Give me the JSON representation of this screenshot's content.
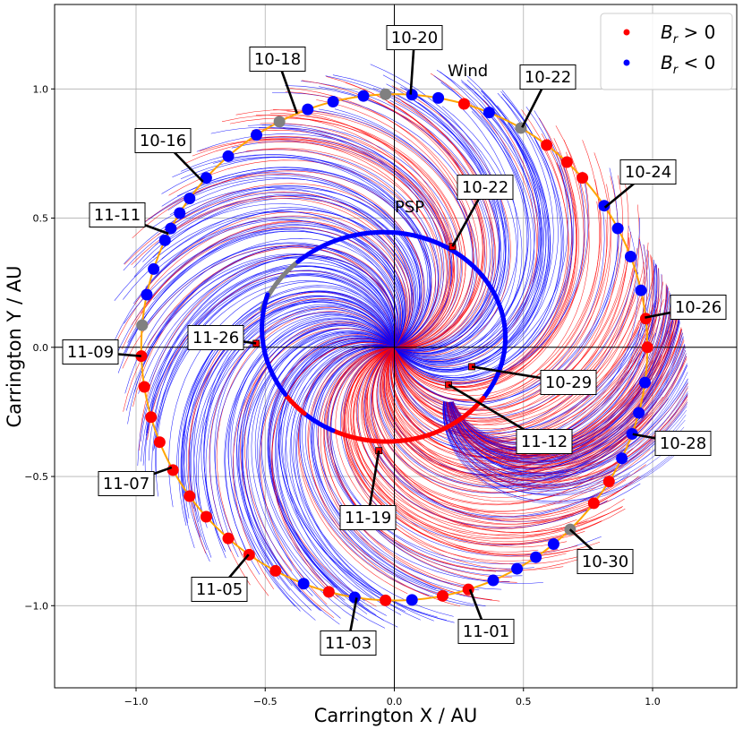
{
  "chart_data": {
    "type": "scatter",
    "xlabel": "Carrington X / AU",
    "ylabel": "Carrington Y / AU",
    "xlim": [
      -1.32,
      1.32
    ],
    "ylim": [
      -1.32,
      1.32
    ],
    "xticks": [
      -1.0,
      -0.5,
      0.0,
      0.5,
      1.0
    ],
    "yticks": [
      -1.0,
      -0.5,
      0.0,
      0.5,
      1.0
    ],
    "xtick_labels": [
      "−1.0",
      "−0.5",
      "0.0",
      "0.5",
      "1.0"
    ],
    "ytick_labels": [
      "−1.0",
      "−0.5",
      "0.0",
      "0.5",
      "1.0"
    ],
    "grid": true,
    "legend": {
      "position": "top-right",
      "entries": [
        {
          "label": "B",
          "sub": "r",
          "rel": " > 0",
          "color": "#ff0000"
        },
        {
          "label": "B",
          "sub": "r",
          "rel": " < 0",
          "color": "#0000ff"
        }
      ]
    },
    "colors": {
      "positive": "#ff0000",
      "negative": "#0000ff",
      "gap": "#808080",
      "orbit": "#ffa500",
      "grid": "#b0b0b0"
    },
    "series": [
      {
        "name": "Wind",
        "label": "Wind",
        "orbit_radius": 0.98,
        "points": [
          {
            "angle": 86,
            "p": "n"
          },
          {
            "angle": 80,
            "p": "n"
          },
          {
            "angle": 74,
            "p": "p"
          },
          {
            "angle": 68,
            "p": "n"
          },
          {
            "angle": 60,
            "p": "g"
          },
          {
            "angle": 53,
            "p": "p"
          },
          {
            "angle": 47,
            "p": "p"
          },
          {
            "angle": 42,
            "p": "p"
          },
          {
            "angle": 34,
            "p": "n"
          },
          {
            "angle": 28,
            "p": "n"
          },
          {
            "angle": 21,
            "p": "n"
          },
          {
            "angle": 13,
            "p": "n"
          },
          {
            "angle": 6.5,
            "p": "p"
          },
          {
            "angle": 0,
            "p": "p"
          },
          {
            "angle": -8,
            "p": "n"
          },
          {
            "angle": -15,
            "p": "n"
          },
          {
            "angle": -20,
            "p": "n"
          },
          {
            "angle": -26,
            "p": "n"
          },
          {
            "angle": -32,
            "p": "p"
          },
          {
            "angle": -38,
            "p": "p"
          },
          {
            "angle": -46,
            "p": "g"
          },
          {
            "angle": -51,
            "p": "n"
          },
          {
            "angle": -56,
            "p": "n"
          },
          {
            "angle": -61,
            "p": "n"
          },
          {
            "angle": -67,
            "p": "n"
          },
          {
            "angle": -73,
            "p": "p"
          },
          {
            "angle": -79,
            "p": "p"
          },
          {
            "angle": -86,
            "p": "n"
          },
          {
            "angle": -92,
            "p": "p"
          },
          {
            "angle": -99,
            "p": "n"
          },
          {
            "angle": -105,
            "p": "p"
          },
          {
            "angle": -111,
            "p": "n"
          },
          {
            "angle": -118,
            "p": "p"
          },
          {
            "angle": -125,
            "p": "p"
          },
          {
            "angle": -131,
            "p": "p"
          },
          {
            "angle": -138,
            "p": "p"
          },
          {
            "angle": -144,
            "p": "p"
          },
          {
            "angle": -151,
            "p": "p"
          },
          {
            "angle": -158,
            "p": "p"
          },
          {
            "angle": -164,
            "p": "p"
          },
          {
            "angle": -171,
            "p": "p"
          },
          {
            "angle": -178,
            "p": "p"
          },
          {
            "angle": 175,
            "p": "g"
          },
          {
            "angle": 168,
            "p": "n"
          },
          {
            "angle": 162,
            "p": "n"
          },
          {
            "angle": 155,
            "p": "n"
          },
          {
            "angle": 152,
            "p": "n"
          },
          {
            "angle": 148,
            "p": "n"
          },
          {
            "angle": 144,
            "p": "n"
          },
          {
            "angle": 138,
            "p": "n"
          },
          {
            "angle": 131,
            "p": "n"
          },
          {
            "angle": 123,
            "p": "n"
          },
          {
            "angle": 117,
            "p": "g"
          },
          {
            "angle": 110,
            "p": "n"
          },
          {
            "angle": 104,
            "p": "n"
          },
          {
            "angle": 97,
            "p": "n"
          },
          {
            "angle": 92,
            "p": "g"
          }
        ]
      },
      {
        "name": "PSP",
        "label": "PSP",
        "trajectory_description": "spiral trajectory around the Sun, colored by polarity",
        "perihelion_au": 0.15,
        "outer_radius_au": 0.55
      }
    ],
    "annotations": [
      {
        "text": "10-20",
        "target": "Wind",
        "x": 0.063,
        "y": 0.978
      },
      {
        "text": "10-22",
        "target": "Wind",
        "x": 0.495,
        "y": 0.851
      },
      {
        "text": "10-24",
        "target": "Wind",
        "x": 0.815,
        "y": 0.541
      },
      {
        "text": "10-26",
        "target": "Wind",
        "x": 0.97,
        "y": 0.115
      },
      {
        "text": "10-28",
        "target": "Wind",
        "x": 0.923,
        "y": -0.336
      },
      {
        "text": "10-30",
        "target": "Wind",
        "x": 0.68,
        "y": -0.705
      },
      {
        "text": "11-01",
        "target": "Wind",
        "x": 0.293,
        "y": -0.937
      },
      {
        "text": "11-03",
        "target": "Wind",
        "x": -0.146,
        "y": -0.969
      },
      {
        "text": "11-05",
        "target": "Wind",
        "x": -0.564,
        "y": -0.802
      },
      {
        "text": "11-07",
        "target": "Wind",
        "x": -0.862,
        "y": -0.465
      },
      {
        "text": "11-09",
        "target": "Wind",
        "x": -0.98,
        "y": -0.034
      },
      {
        "text": "11-11",
        "target": "Wind",
        "x": -0.875,
        "y": 0.44
      },
      {
        "text": "10-16",
        "target": "Wind",
        "x": -0.741,
        "y": 0.641
      },
      {
        "text": "10-18",
        "target": "Wind",
        "x": -0.377,
        "y": 0.905
      },
      {
        "text": "10-22",
        "target": "PSP",
        "x": 0.225,
        "y": 0.39
      },
      {
        "text": "10-29",
        "target": "PSP",
        "x": 0.3,
        "y": -0.075
      },
      {
        "text": "11-12",
        "target": "PSP",
        "x": 0.21,
        "y": -0.145
      },
      {
        "text": "11-19",
        "target": "PSP",
        "x": -0.06,
        "y": -0.4
      },
      {
        "text": "11-26",
        "target": "PSP",
        "x": -0.535,
        "y": 0.015
      }
    ],
    "text_labels": [
      "Wind",
      "PSP"
    ]
  }
}
